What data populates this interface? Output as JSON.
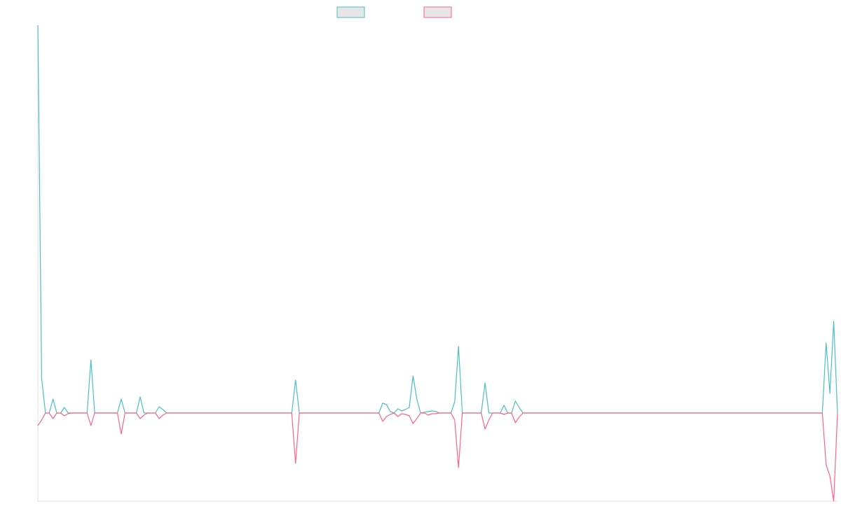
{
  "chart_data": {
    "type": "line",
    "ylim": [
      -126,
      554
    ],
    "series": [
      {
        "color": "#4bc0c0",
        "values": [
          554,
          50,
          0,
          0,
          20,
          0,
          0,
          8,
          0,
          0,
          0,
          0,
          0,
          0,
          76,
          0,
          0,
          0,
          0,
          0,
          0,
          0,
          20,
          0,
          0,
          0,
          0,
          23,
          0,
          0,
          0,
          0,
          9,
          5,
          0,
          0,
          0,
          0,
          0,
          0,
          0,
          0,
          0,
          0,
          0,
          0,
          0,
          0,
          0,
          0,
          0,
          0,
          0,
          0,
          0,
          0,
          0,
          0,
          0,
          0,
          0,
          0,
          0,
          0,
          0,
          0,
          0,
          0,
          47,
          0,
          0,
          0,
          0,
          0,
          0,
          0,
          0,
          0,
          0,
          0,
          0,
          0,
          0,
          0,
          0,
          0,
          0,
          0,
          0,
          0,
          0,
          14,
          12,
          2,
          0,
          6,
          3,
          5,
          8,
          53,
          20,
          0,
          1,
          2,
          3,
          2,
          0,
          0,
          0,
          0,
          16,
          95,
          0,
          0,
          0,
          0,
          0,
          0,
          43,
          0,
          0,
          0,
          0,
          11,
          0,
          0,
          17,
          8,
          0,
          0,
          0,
          0,
          0,
          0,
          0,
          0,
          0,
          0,
          0,
          0,
          0,
          0,
          0,
          0,
          0,
          0,
          0,
          0,
          0,
          0,
          0,
          0,
          0,
          0,
          0,
          0,
          0,
          0,
          0,
          0,
          0,
          0,
          0,
          0,
          0,
          0,
          0,
          0,
          0,
          0,
          0,
          0,
          0,
          0,
          0,
          0,
          0,
          0,
          0,
          0,
          0,
          0,
          0,
          0,
          0,
          0,
          0,
          0,
          0,
          0,
          0,
          0,
          0,
          0,
          0,
          0,
          0,
          0,
          0,
          0,
          0,
          0,
          0,
          0,
          0,
          0,
          0,
          0,
          100,
          28,
          131,
          0
        ]
      },
      {
        "color": "#ff6384",
        "values": [
          -18,
          -10,
          0,
          0,
          -8,
          0,
          0,
          -4,
          -1,
          0,
          0,
          0,
          0,
          0,
          -18,
          0,
          0,
          0,
          0,
          0,
          0,
          0,
          -30,
          0,
          0,
          0,
          0,
          -8,
          -3,
          0,
          0,
          0,
          -8,
          -3,
          0,
          0,
          0,
          0,
          0,
          0,
          0,
          0,
          0,
          0,
          0,
          0,
          0,
          0,
          0,
          0,
          0,
          0,
          0,
          0,
          0,
          0,
          0,
          0,
          0,
          0,
          0,
          0,
          0,
          0,
          0,
          0,
          0,
          0,
          -72,
          0,
          0,
          0,
          0,
          0,
          0,
          0,
          0,
          0,
          0,
          0,
          0,
          0,
          0,
          0,
          0,
          0,
          0,
          0,
          0,
          0,
          0,
          -12,
          -5,
          -2,
          0,
          -5,
          -1,
          -2,
          -4,
          -15,
          -8,
          0,
          0,
          -3,
          -1,
          -1,
          0,
          0,
          0,
          0,
          -10,
          -78,
          0,
          0,
          0,
          0,
          0,
          0,
          -23,
          -10,
          0,
          0,
          0,
          -2,
          0,
          0,
          -14,
          -6,
          0,
          0,
          0,
          0,
          0,
          0,
          0,
          0,
          0,
          0,
          0,
          0,
          0,
          0,
          0,
          0,
          0,
          0,
          0,
          0,
          0,
          0,
          0,
          0,
          0,
          0,
          0,
          0,
          0,
          0,
          0,
          0,
          0,
          0,
          0,
          0,
          0,
          0,
          0,
          0,
          0,
          0,
          0,
          0,
          0,
          0,
          0,
          0,
          0,
          0,
          0,
          0,
          0,
          0,
          0,
          0,
          0,
          0,
          0,
          0,
          0,
          0,
          0,
          0,
          0,
          0,
          0,
          0,
          0,
          0,
          0,
          0,
          0,
          0,
          0,
          0,
          0,
          0,
          0,
          0,
          -74,
          -90,
          -126,
          0
        ]
      }
    ]
  }
}
